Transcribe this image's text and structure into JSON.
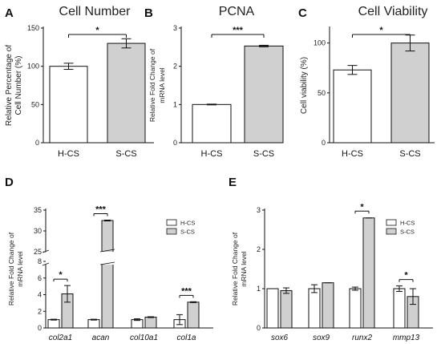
{
  "chart_data": [
    {
      "id": "A",
      "type": "bar",
      "panel_label": "A",
      "title": "Cell Number",
      "ylabel": "Relative Percentage of Cell Number (%)",
      "ylabel_lines": [
        "Relative Percentage of",
        "Cell Number (%)"
      ],
      "ylim": [
        0,
        150
      ],
      "yticks": [
        0,
        50,
        100,
        150
      ],
      "categories": [
        "H-CS",
        "S-CS"
      ],
      "values": [
        100,
        130
      ],
      "errors": [
        4,
        6
      ],
      "colors": [
        "#ffffff",
        "#d0d0d0"
      ],
      "significance": [
        {
          "from": 0,
          "to": 1,
          "label": "*"
        }
      ]
    },
    {
      "id": "B",
      "type": "bar",
      "panel_label": "B",
      "title": "PCNA",
      "ylabel": "Relative Fold Change of mRNA level",
      "ylabel_lines": [
        "Relative Fold Change of",
        "mRNA level"
      ],
      "ylim": [
        0,
        3
      ],
      "yticks": [
        0,
        1,
        2,
        3
      ],
      "categories": [
        "H-CS",
        "S-CS"
      ],
      "values": [
        1.0,
        2.53
      ],
      "errors": [
        0.01,
        0.02
      ],
      "colors": [
        "#ffffff",
        "#d0d0d0"
      ],
      "significance": [
        {
          "from": 0,
          "to": 1,
          "label": "***"
        }
      ]
    },
    {
      "id": "C",
      "type": "bar",
      "panel_label": "C",
      "title": "Cell Viability",
      "ylabel": "Cell viability (%)",
      "ylabel_lines": [
        "Cell viability (%)"
      ],
      "ylim": [
        0,
        115
      ],
      "yticks": [
        0,
        50,
        100
      ],
      "categories": [
        "H-CS",
        "S-CS"
      ],
      "values": [
        73,
        100
      ],
      "errors": [
        4.5,
        8
      ],
      "colors": [
        "#ffffff",
        "#d0d0d0"
      ],
      "significance": [
        {
          "from": 0,
          "to": 1,
          "label": "*"
        }
      ]
    },
    {
      "id": "D",
      "type": "bar",
      "panel_label": "D",
      "title": "",
      "ylabel": "Relative Fold Change of mRNA level",
      "ylabel_lines": [
        "Relative Fold Change of",
        "mRNA level"
      ],
      "broken_axis": {
        "lower_range": [
          0,
          8
        ],
        "upper_range": [
          25,
          35
        ]
      },
      "yticks_lower": [
        0,
        2,
        4,
        6,
        8
      ],
      "yticks_upper": [
        25,
        30,
        35
      ],
      "categories": [
        "col2a1",
        "acan",
        "col10a1",
        "col1a"
      ],
      "series": [
        {
          "name": "H-CS",
          "values": [
            1.0,
            1.0,
            1.0,
            1.0
          ],
          "errors": [
            0.05,
            0.05,
            0.1,
            0.6
          ],
          "color": "#ffffff"
        },
        {
          "name": "S-CS",
          "values": [
            4.1,
            32.5,
            1.3,
            3.1
          ],
          "errors": [
            1.0,
            0.1,
            0.05,
            0.05
          ],
          "color": "#d0d0d0"
        }
      ],
      "legend_position": "top-right",
      "significance": [
        {
          "category": 0,
          "label": "*"
        },
        {
          "category": 1,
          "label": "***"
        },
        {
          "category": 3,
          "label": "***"
        }
      ]
    },
    {
      "id": "E",
      "type": "bar",
      "panel_label": "E",
      "title": "",
      "ylabel": "Relative Fold Change of mRNA level",
      "ylabel_lines": [
        "Relative Fold Change of",
        "mRNA level"
      ],
      "ylim": [
        0,
        3
      ],
      "yticks": [
        0,
        1,
        2,
        3
      ],
      "categories": [
        "sox6",
        "sox9",
        "runx2",
        "mmp13"
      ],
      "series": [
        {
          "name": "H-CS",
          "values": [
            1.0,
            1.0,
            1.0,
            1.0
          ],
          "errors": [
            0.0,
            0.1,
            0.04,
            0.07
          ],
          "color": "#ffffff"
        },
        {
          "name": "S-CS",
          "values": [
            0.95,
            1.15,
            2.8,
            0.8
          ],
          "errors": [
            0.07,
            0.01,
            0.01,
            0.2
          ],
          "color": "#d0d0d0"
        }
      ],
      "legend_position": "top-right",
      "significance": [
        {
          "category": 2,
          "label": "*"
        },
        {
          "category": 3,
          "label": "*"
        }
      ]
    }
  ]
}
